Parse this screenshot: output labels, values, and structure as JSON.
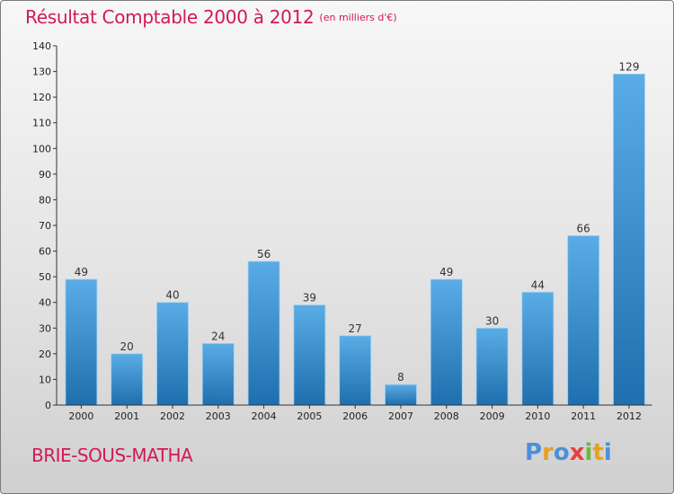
{
  "header": {
    "title": "Résultat Comptable 2000 à 2012",
    "subtitle": "(en milliers d'€)"
  },
  "footer": {
    "commune": "BRIE-SOUS-MATHA",
    "logo_text": "Proxiti",
    "logo_colors": [
      "#4a90d9",
      "#e8a020",
      "#4a90d9",
      "#e84040",
      "#6cb83a",
      "#e8a020",
      "#4a90d9"
    ]
  },
  "colors": {
    "bar_light": "#5aace6",
    "bar_dark": "#1f6fae",
    "accent": "#d1185a"
  },
  "chart_data": {
    "type": "bar",
    "title": "Résultat Comptable 2000 à 2012",
    "subtitle": "(en milliers d'€)",
    "xlabel": "",
    "ylabel": "",
    "categories": [
      "2000",
      "2001",
      "2002",
      "2003",
      "2004",
      "2005",
      "2006",
      "2007",
      "2008",
      "2009",
      "2010",
      "2011",
      "2012"
    ],
    "values": [
      49,
      20,
      40,
      24,
      56,
      39,
      27,
      8,
      49,
      30,
      44,
      66,
      129
    ],
    "data_labels": [
      "49",
      "20",
      "40",
      "24",
      "56",
      "39",
      "27",
      "8",
      "49",
      "30",
      "44",
      "66",
      "129"
    ],
    "ylim": [
      0,
      140
    ],
    "yticks": [
      0,
      10,
      20,
      30,
      40,
      50,
      60,
      70,
      80,
      90,
      100,
      110,
      120,
      130,
      140
    ],
    "grid": false
  }
}
